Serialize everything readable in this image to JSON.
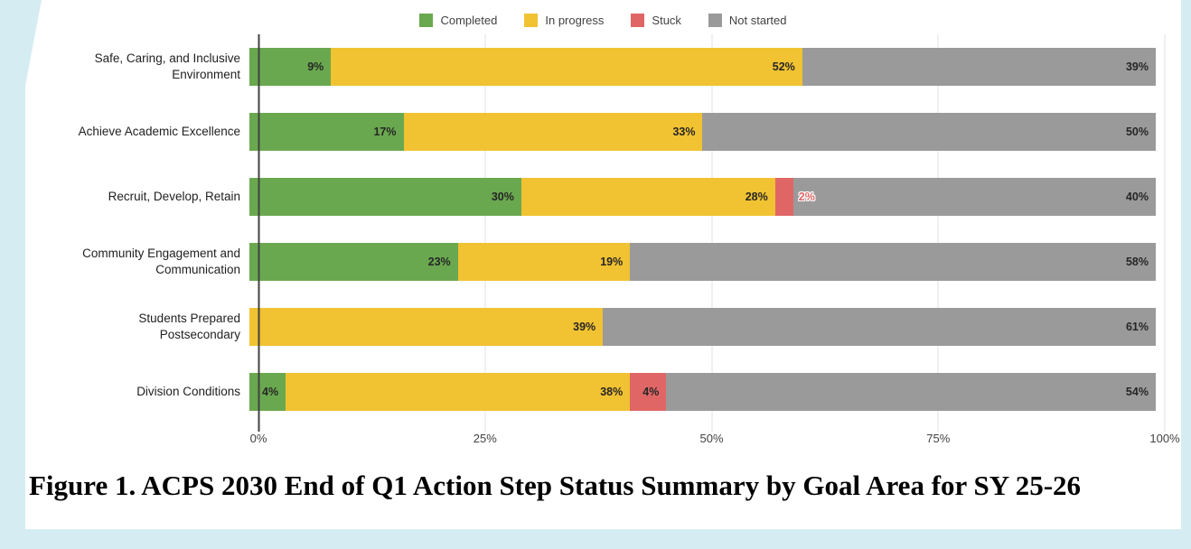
{
  "caption": {
    "text": "Figure 1. ACPS 2030 End of Q1 Action Step Status Summary by Goal Area for SY 25-26"
  },
  "chart_data": {
    "type": "bar",
    "orientation": "horizontal",
    "stacked": true,
    "unit": "%",
    "categories": [
      "Safe, Caring, and Inclusive\nEnvironment",
      "Achieve Academic Excellence",
      "Recruit, Develop, Retain",
      "Community Engagement and\nCommunication",
      "Students Prepared\nPostsecondary",
      "Division Conditions"
    ],
    "series": [
      {
        "name": "Completed",
        "color": "#6aa84f",
        "values": [
          9,
          17,
          30,
          23,
          0,
          4
        ]
      },
      {
        "name": "In progress",
        "color": "#f1c232",
        "values": [
          52,
          33,
          28,
          19,
          39,
          38
        ]
      },
      {
        "name": "Stuck",
        "color": "#e06666",
        "values": [
          0,
          0,
          2,
          0,
          0,
          4
        ]
      },
      {
        "name": "Not started",
        "color": "#9a9a9a",
        "values": [
          39,
          50,
          40,
          58,
          61,
          54
        ]
      }
    ],
    "x_ticks": [
      "0%",
      "25%",
      "50%",
      "75%",
      "100%"
    ],
    "xlim": [
      0,
      100
    ],
    "legend_position": "top",
    "value_labels": "inside-end",
    "grid": true
  }
}
